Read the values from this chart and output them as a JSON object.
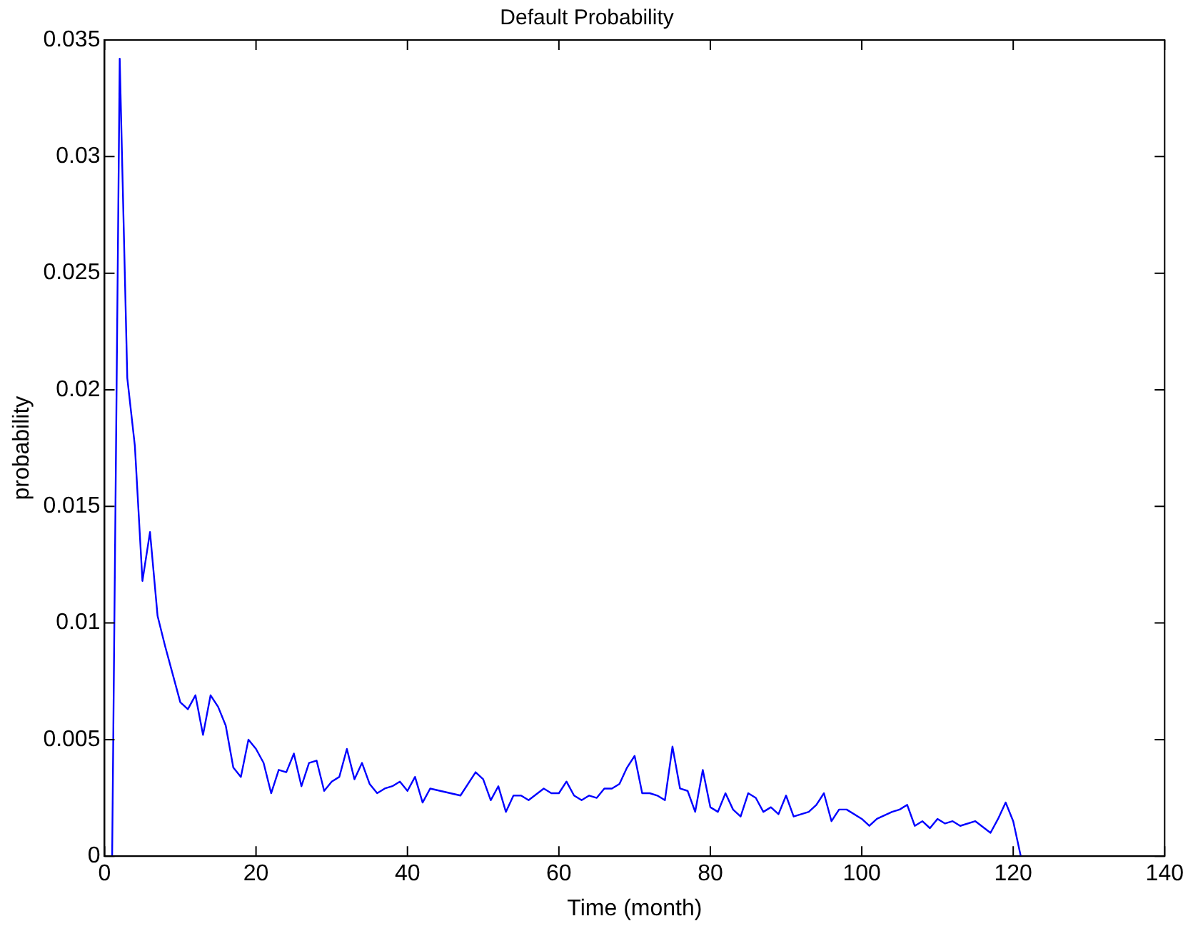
{
  "chart_data": {
    "type": "line",
    "title": "Default Probability",
    "xlabel": "Time (month)",
    "ylabel": "probability",
    "x": [
      1,
      2,
      3,
      4,
      5,
      6,
      7,
      8,
      9,
      10,
      11,
      12,
      13,
      14,
      15,
      16,
      17,
      18,
      19,
      20,
      21,
      22,
      23,
      24,
      25,
      26,
      27,
      28,
      29,
      30,
      31,
      32,
      33,
      34,
      35,
      36,
      37,
      38,
      39,
      40,
      41,
      42,
      43,
      47,
      49,
      50,
      51,
      52,
      53,
      54,
      55,
      56,
      58,
      59,
      60,
      61,
      62,
      63,
      64,
      65,
      66,
      67,
      68,
      69,
      70,
      71,
      72,
      73,
      74,
      75,
      76,
      77,
      78,
      79,
      80,
      81,
      82,
      83,
      84,
      85,
      86,
      87,
      88,
      89,
      90,
      91,
      92,
      93,
      94,
      95,
      96,
      97,
      98,
      100,
      101,
      102,
      104,
      105,
      106,
      107,
      108,
      109,
      110,
      111,
      112,
      113,
      115,
      117,
      118,
      119,
      120,
      121
    ],
    "series": [
      {
        "color": "#0000ff",
        "values": [
          0,
          0.0342,
          0.0205,
          0.0176,
          0.0118,
          0.0139,
          0.0103,
          0.009,
          0.0078,
          0.0066,
          0.0063,
          0.0069,
          0.0052,
          0.0069,
          0.0064,
          0.0056,
          0.0038,
          0.0034,
          0.005,
          0.0046,
          0.004,
          0.0027,
          0.0037,
          0.0036,
          0.0044,
          0.003,
          0.004,
          0.0041,
          0.0028,
          0.0032,
          0.0034,
          0.0046,
          0.0033,
          0.004,
          0.0031,
          0.0027,
          0.0029,
          0.003,
          0.0032,
          0.0028,
          0.0034,
          0.0023,
          0.0029,
          0.0026,
          0.0036,
          0.0033,
          0.0024,
          0.003,
          0.0019,
          0.0026,
          0.0026,
          0.0024,
          0.0029,
          0.0027,
          0.0027,
          0.0032,
          0.0026,
          0.0024,
          0.0026,
          0.0025,
          0.0029,
          0.0029,
          0.0031,
          0.0038,
          0.0043,
          0.0027,
          0.0027,
          0.0026,
          0.0024,
          0.0047,
          0.0029,
          0.0028,
          0.0019,
          0.0037,
          0.0021,
          0.0019,
          0.0027,
          0.002,
          0.0017,
          0.0027,
          0.0025,
          0.0019,
          0.0021,
          0.0018,
          0.0026,
          0.0017,
          0.0018,
          0.0019,
          0.0022,
          0.0027,
          0.0015,
          0.002,
          0.002,
          0.0016,
          0.0013,
          0.0016,
          0.0019,
          0.002,
          0.0022,
          0.0013,
          0.0015,
          0.0012,
          0.0016,
          0.0014,
          0.0015,
          0.0013,
          0.0015,
          0.001,
          0.0016,
          0.0023,
          0.0015,
          0
        ]
      }
    ],
    "xlim": [
      0,
      140
    ],
    "xticks": [
      0,
      20,
      40,
      60,
      80,
      100,
      120,
      140
    ],
    "ylim": [
      0,
      0.035
    ],
    "yticks": [
      0,
      0.005,
      0.01,
      0.015,
      0.02,
      0.025,
      0.03,
      0.035
    ],
    "grid": false,
    "legend": false,
    "marker": "none",
    "line_style": "solid"
  }
}
